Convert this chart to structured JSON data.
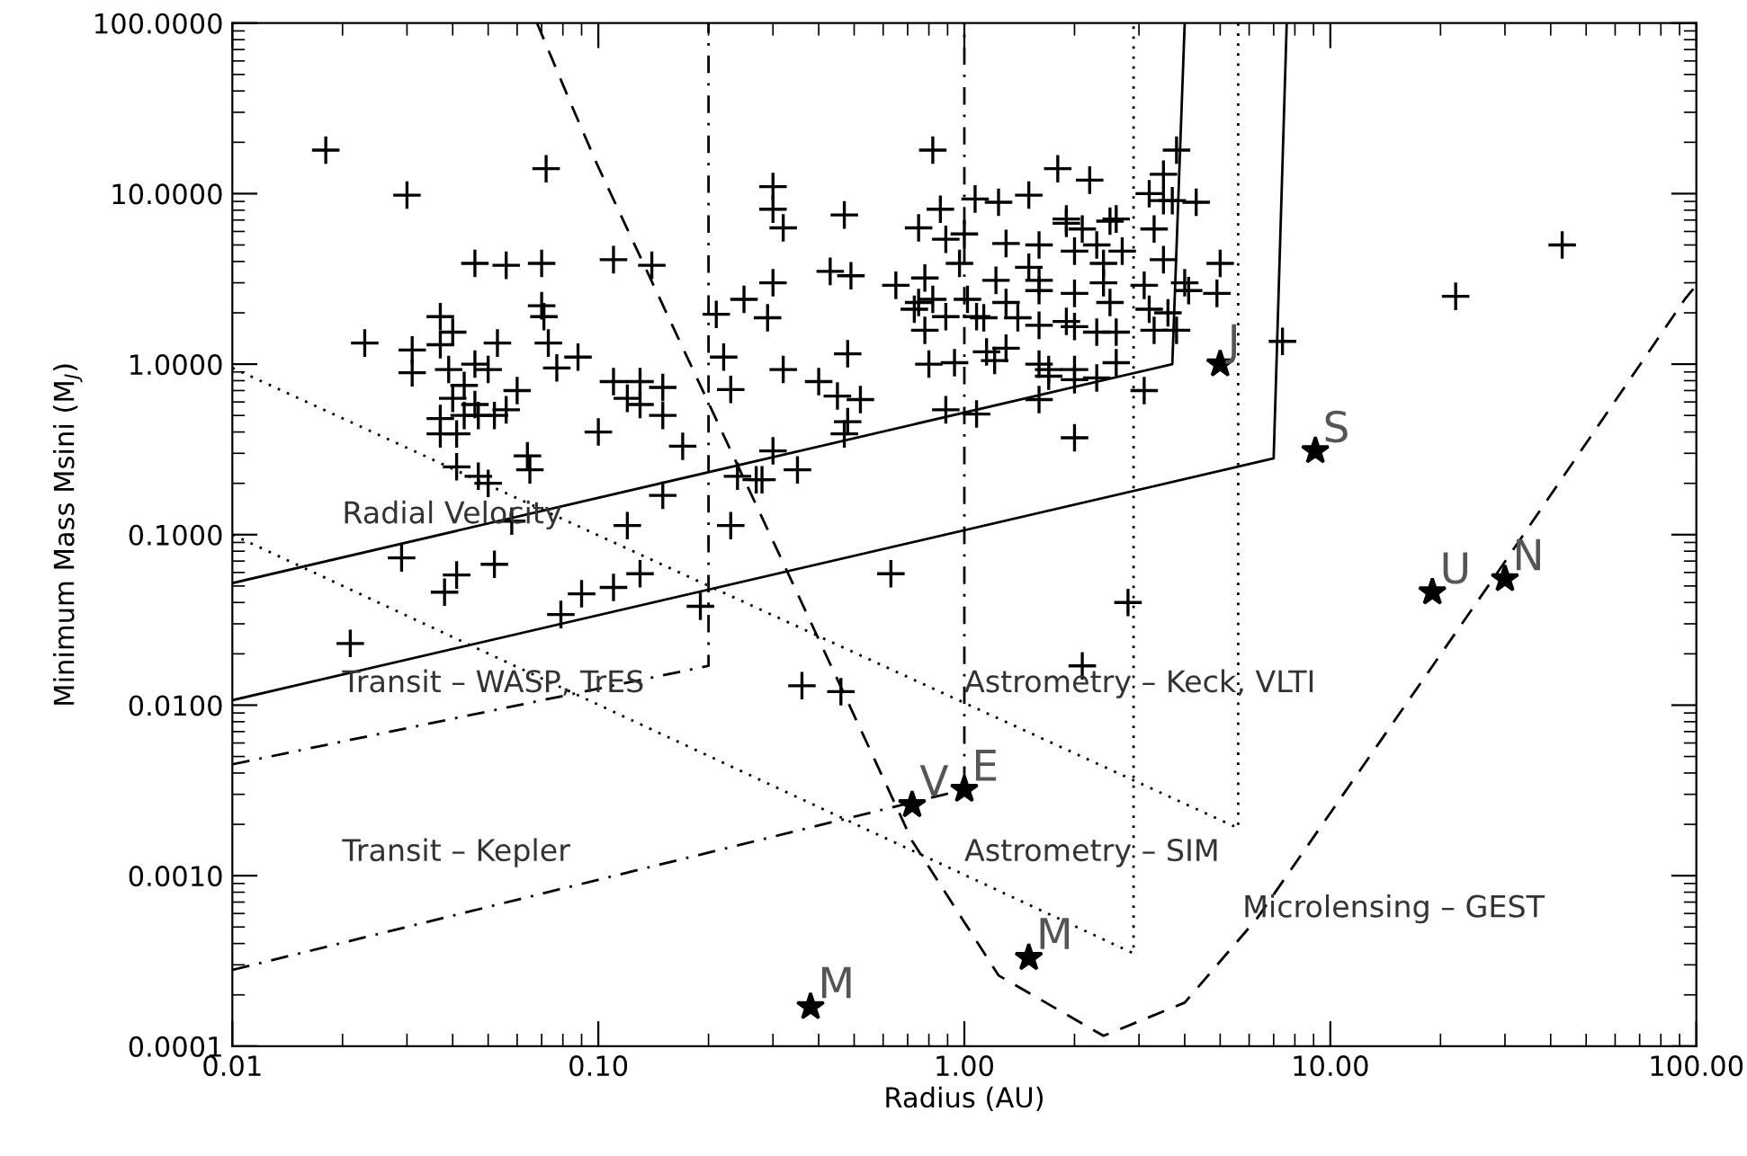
{
  "chart_data": {
    "type": "scatter",
    "xlabel": "Radius (AU)",
    "ylabel": "Minimum Mass Msini (M$_{J}$)",
    "log": "xy",
    "grid": false,
    "legend": false,
    "xlim": [
      0.01,
      100
    ],
    "ylim": [
      0.0001,
      100
    ],
    "xticks": [
      {
        "value": 0.01,
        "label": "0.01"
      },
      {
        "value": 0.1,
        "label": "0.10"
      },
      {
        "value": 1,
        "label": "1.00"
      },
      {
        "value": 10,
        "label": "10.00"
      },
      {
        "value": 100,
        "label": "100.00"
      }
    ],
    "yticks": [
      {
        "value": 0.0001,
        "label": "0.0001"
      },
      {
        "value": 0.001,
        "label": "0.0010"
      },
      {
        "value": 0.01,
        "label": "0.0100"
      },
      {
        "value": 0.1,
        "label": "0.1000"
      },
      {
        "value": 1,
        "label": "1.0000"
      },
      {
        "value": 10,
        "label": "10.0000"
      },
      {
        "value": 100,
        "label": "100.0000"
      }
    ],
    "series": [
      {
        "marker": "cross",
        "color": "#000000",
        "x": [
          0.018,
          0.03,
          0.072,
          0.046,
          0.056,
          0.07,
          0.11,
          0.037,
          0.04,
          0.023,
          0.031,
          0.037,
          0.053,
          0.073,
          0.07,
          0.071,
          0.088,
          0.077,
          0.031,
          0.039,
          0.046,
          0.05,
          0.043,
          0.06,
          0.04,
          0.046,
          0.056,
          0.037,
          0.043,
          0.047,
          0.052,
          0.037,
          0.041,
          0.1,
          0.064,
          0.065,
          0.041,
          0.047,
          0.05,
          0.058,
          0.029,
          0.052,
          0.041,
          0.038,
          0.09,
          0.079,
          0.021,
          0.82,
          0.3,
          0.3,
          0.32,
          0.47,
          0.86,
          1.07,
          0.75,
          0.89,
          1.0,
          0.97,
          0.14,
          0.43,
          0.49,
          0.65,
          0.78,
          0.3,
          0.25,
          0.21,
          0.29,
          0.75,
          0.82,
          0.73,
          0.89,
          0.78,
          1.02,
          0.22,
          0.32,
          0.48,
          0.8,
          0.94,
          0.11,
          0.13,
          0.15,
          0.12,
          0.13,
          0.15,
          0.23,
          0.4,
          0.45,
          0.52,
          0.48,
          0.47,
          0.89,
          1.08,
          0.17,
          0.3,
          0.35,
          0.24,
          0.27,
          0.28,
          0.15,
          0.12,
          0.23,
          3.8,
          1.8,
          2.2,
          3.5,
          3.2,
          3.5,
          3.7,
          4.3,
          1.5,
          1.24,
          1.9,
          1.9,
          2.1,
          2.6,
          2.5,
          3.3,
          1.3,
          1.6,
          2.0,
          2.3,
          2.7,
          2.4,
          3.5,
          5.0,
          1.5,
          1.22,
          1.6,
          1.6,
          2.0,
          2.4,
          3.1,
          4.0,
          4.1,
          4.9,
          1.3,
          2.5,
          3.2,
          3.6,
          1.08,
          1.13,
          1.4,
          1.6,
          1.9,
          2.0,
          2.3,
          2.6,
          3.3,
          3.8,
          1.3,
          1.15,
          1.21,
          1.6,
          1.7,
          1.7,
          2.0,
          2.0,
          2.3,
          2.6,
          3.1,
          1.6,
          2.0,
          7.4,
          22,
          43,
          0.11,
          0.13,
          0.19,
          0.63,
          2.8,
          2.1,
          0.36,
          0.46
        ],
        "values": [
          18,
          9.8,
          14,
          3.9,
          3.8,
          3.9,
          4.1,
          1.9,
          1.54,
          1.33,
          1.21,
          1.3,
          1.33,
          1.33,
          2.2,
          1.9,
          1.1,
          0.95,
          0.89,
          0.93,
          1.0,
          0.93,
          0.75,
          0.7,
          0.63,
          0.58,
          0.54,
          0.48,
          0.5,
          0.5,
          0.5,
          0.39,
          0.39,
          0.4,
          0.29,
          0.24,
          0.25,
          0.22,
          0.2,
          0.12,
          0.073,
          0.067,
          0.058,
          0.046,
          0.045,
          0.034,
          0.023,
          18,
          11,
          8.1,
          6.3,
          7.5,
          8.1,
          9.3,
          6.3,
          5.4,
          5.8,
          3.9,
          3.8,
          3.5,
          3.3,
          2.9,
          3.2,
          3.0,
          2.4,
          1.96,
          1.87,
          2.3,
          2.4,
          2.1,
          1.9,
          1.58,
          2.4,
          1.1,
          0.93,
          1.15,
          1.0,
          1.02,
          0.79,
          0.79,
          0.73,
          0.63,
          0.58,
          0.5,
          0.71,
          0.79,
          0.65,
          0.62,
          0.46,
          0.39,
          0.54,
          0.51,
          0.33,
          0.31,
          0.24,
          0.22,
          0.21,
          0.21,
          0.17,
          0.113,
          0.113,
          18,
          14,
          12,
          13,
          10,
          9.1,
          9.1,
          8.9,
          9.8,
          8.9,
          7.1,
          6.7,
          6.2,
          7.1,
          6.9,
          6.2,
          5.1,
          5.0,
          4.6,
          5.0,
          4.6,
          3.9,
          4.1,
          3.9,
          3.7,
          3.1,
          3.1,
          2.7,
          2.6,
          3.0,
          2.9,
          3.0,
          2.7,
          2.6,
          2.3,
          2.3,
          2.1,
          2.0,
          1.9,
          1.87,
          1.87,
          1.69,
          1.78,
          1.66,
          1.54,
          1.54,
          1.58,
          1.58,
          1.24,
          1.18,
          1.05,
          1.0,
          0.93,
          0.85,
          0.93,
          0.81,
          0.83,
          1.02,
          0.7,
          0.62,
          0.37,
          1.36,
          2.5,
          5.0,
          0.049,
          0.059,
          0.038,
          0.059,
          0.04,
          0.017,
          0.013,
          0.012
        ]
      },
      {
        "marker": "star",
        "color": "#000000",
        "x": [
          0.38,
          0.72,
          1.0,
          1.5,
          5.0,
          9.1,
          19,
          30
        ],
        "values": [
          0.00017,
          0.0026,
          0.0032,
          0.00033,
          1.0,
          0.31,
          0.046,
          0.055
        ],
        "value_labels": [
          "M",
          "V",
          "E",
          "M",
          "J",
          "S",
          "U",
          "N"
        ]
      },
      {
        "type": "line",
        "line_style": "solid",
        "color": "#000000",
        "x": [
          0.01,
          3.7,
          4.0
        ],
        "values": [
          0.052,
          1.0,
          100
        ]
      },
      {
        "type": "line",
        "line_style": "solid",
        "color": "#000000",
        "x": [
          0.01,
          7.0,
          7.6
        ],
        "values": [
          0.0107,
          0.28,
          100
        ]
      },
      {
        "type": "line",
        "line_style": "dotted",
        "color": "#000000",
        "x": [
          0.01,
          5.6,
          5.6
        ],
        "values": [
          0.95,
          0.0019,
          100
        ]
      },
      {
        "type": "line",
        "line_style": "dotted",
        "color": "#000000",
        "x": [
          0.01,
          2.9,
          2.9
        ],
        "values": [
          0.1,
          0.00035,
          100
        ]
      },
      {
        "type": "line",
        "line_style": "dashdot",
        "color": "#000000",
        "x": [
          0.01,
          0.2,
          0.2
        ],
        "values": [
          0.0045,
          0.017,
          100
        ]
      },
      {
        "type": "line",
        "line_style": "dashdot",
        "color": "#000000",
        "x": [
          0.01,
          1.0,
          1.0
        ],
        "values": [
          0.00028,
          0.0032,
          100
        ]
      },
      {
        "type": "line",
        "line_style": "dashed",
        "color": "#000000",
        "x": [
          0.068,
          0.085,
          0.099,
          0.31,
          0.55,
          0.72,
          1.24,
          2.4,
          4.0,
          6.3,
          28,
          93,
          100
        ],
        "values": [
          100,
          32,
          15,
          0.079,
          0.0056,
          0.0016,
          0.00026,
          0.000115,
          0.00018,
          0.00056,
          0.056,
          2.4,
          2.9
        ]
      }
    ],
    "annotations": [
      "Radial Velocity",
      "Transit – WASP, TrES",
      "Transit – Kepler",
      "Astrometry – Keck, VLTI",
      "Astrometry – SIM",
      "Microlensing – GEST"
    ]
  }
}
